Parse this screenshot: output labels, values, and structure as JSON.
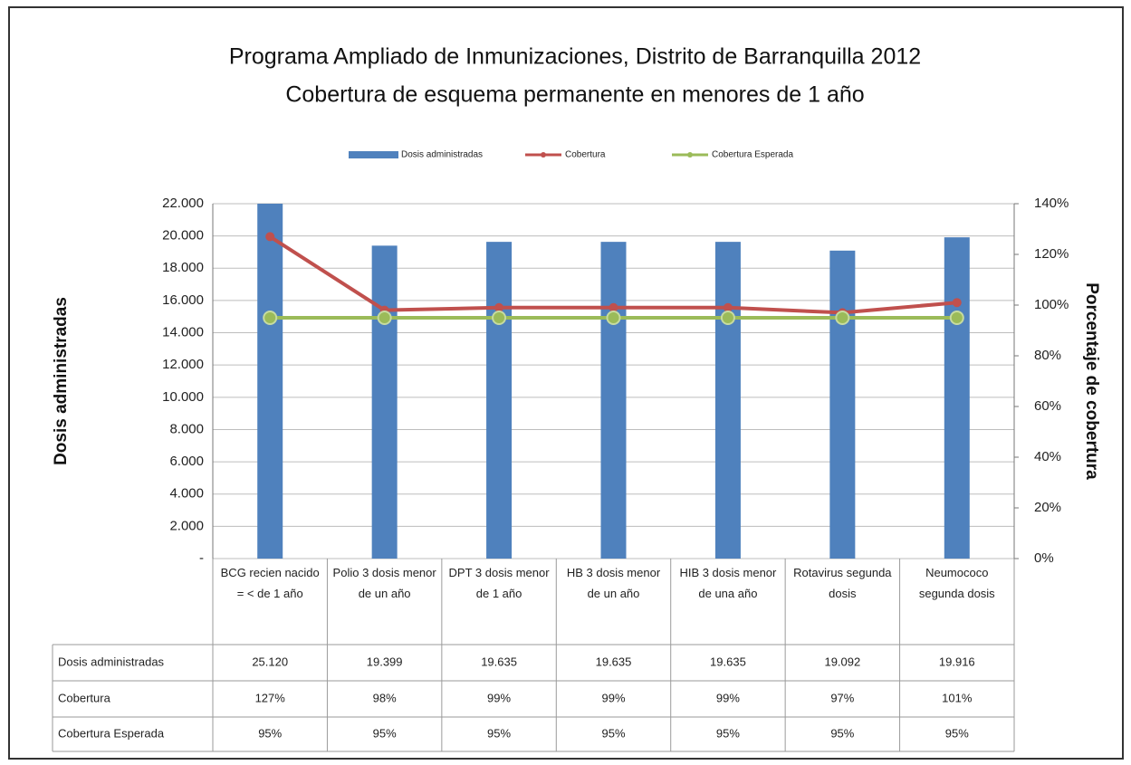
{
  "chart_data": {
    "type": "bar",
    "title": "Programa Ampliado de Inmunizaciones, Distrito de Barranquilla 2012",
    "subtitle": "Cobertura de esquema permanente en menores de 1 año",
    "y_label": "Dosis administradas",
    "y2_label": "Porcentaje de cobertura",
    "categories": [
      "BCG recien nacido = < de 1 año",
      "Polio 3 dosis menor de un año",
      "DPT 3 dosis menor de 1 año",
      "HB 3 dosis menor de un año",
      "HIB 3 dosis menor de una año",
      "Rotavirus segunda dosis",
      "Neumococo segunda dosis"
    ],
    "series": [
      {
        "name": "Dosis administradas",
        "type": "bar",
        "color": "#4f81bd",
        "values": [
          25120,
          19399,
          19635,
          19635,
          19635,
          19092,
          19916
        ],
        "value_labels": [
          "25.120",
          "19.399",
          "19.635",
          "19.635",
          "19.635",
          "19.092",
          "19.916"
        ]
      },
      {
        "name": "Cobertura",
        "type": "line",
        "axis": "y2",
        "color": "#c0504d",
        "values": [
          127,
          98,
          99,
          99,
          99,
          97,
          101
        ],
        "value_labels": [
          "127%",
          "98%",
          "99%",
          "99%",
          "99%",
          "97%",
          "101%"
        ]
      },
      {
        "name": "Cobertura Esperada",
        "type": "line",
        "axis": "y2",
        "color": "#9bbb59",
        "values": [
          95,
          95,
          95,
          95,
          95,
          95,
          95
        ],
        "value_labels": [
          "95%",
          "95%",
          "95%",
          "95%",
          "95%",
          "95%",
          "95%"
        ]
      }
    ],
    "ylim": [
      0,
      22000
    ],
    "yticks": [
      {
        "value": 0,
        "label": "-"
      },
      {
        "value": 2000,
        "label": "2.000"
      },
      {
        "value": 4000,
        "label": "4.000"
      },
      {
        "value": 6000,
        "label": "6.000"
      },
      {
        "value": 8000,
        "label": "8.000"
      },
      {
        "value": 10000,
        "label": "10.000"
      },
      {
        "value": 12000,
        "label": "12.000"
      },
      {
        "value": 14000,
        "label": "14.000"
      },
      {
        "value": 16000,
        "label": "16.000"
      },
      {
        "value": 18000,
        "label": "18.000"
      },
      {
        "value": 20000,
        "label": "20.000"
      },
      {
        "value": 22000,
        "label": "22.000"
      }
    ],
    "y2lim": [
      0,
      140
    ],
    "y2ticks": [
      {
        "value": 0,
        "label": "0%"
      },
      {
        "value": 20,
        "label": "20%"
      },
      {
        "value": 40,
        "label": "40%"
      },
      {
        "value": 60,
        "label": "60%"
      },
      {
        "value": 80,
        "label": "80%"
      },
      {
        "value": 100,
        "label": "100%"
      },
      {
        "value": 120,
        "label": "120%"
      },
      {
        "value": 140,
        "label": "140%"
      }
    ],
    "grid": true,
    "legend": "top"
  }
}
